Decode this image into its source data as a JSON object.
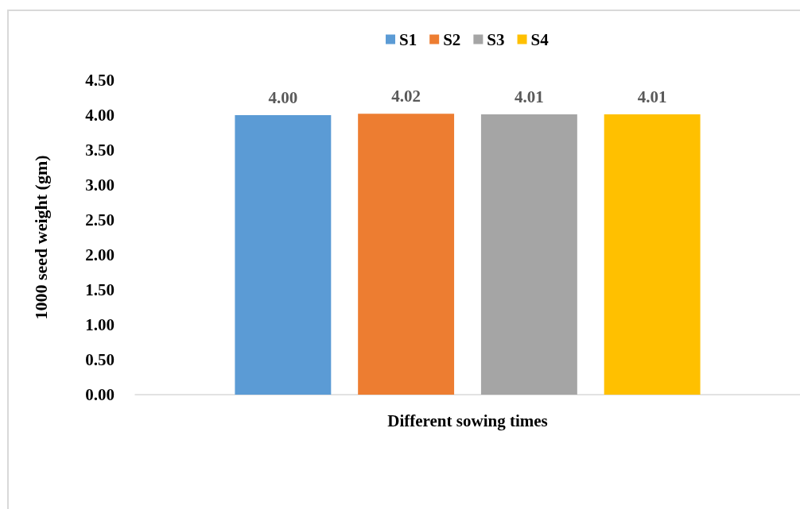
{
  "chart_data": {
    "type": "bar",
    "xlabel": "Different sowing times",
    "ylabel": "1000 seed weight (gm)",
    "categories": [
      null
    ],
    "series": [
      {
        "name": "S1",
        "color": "#5b9bd5",
        "values": [
          4.0
        ],
        "value_labels": [
          "4.00"
        ]
      },
      {
        "name": "S2",
        "color": "#ed7d31",
        "values": [
          4.02
        ],
        "value_labels": [
          "4.02"
        ]
      },
      {
        "name": "S3",
        "color": "#a5a5a5",
        "values": [
          4.01
        ],
        "value_labels": [
          "4.01"
        ]
      },
      {
        "name": "S4",
        "color": "#ffc000",
        "values": [
          4.01
        ],
        "value_labels": [
          "4.01"
        ]
      }
    ],
    "ylim": [
      0,
      4.5
    ],
    "yticks": [
      {
        "value": 0,
        "label": "0.00"
      },
      {
        "value": 0.5,
        "label": "0.50"
      },
      {
        "value": 1,
        "label": "1.00"
      },
      {
        "value": 1.5,
        "label": "1.50"
      },
      {
        "value": 2,
        "label": "2.00"
      },
      {
        "value": 2.5,
        "label": "2.50"
      },
      {
        "value": 3,
        "label": "3.00"
      },
      {
        "value": 3.5,
        "label": "3.50"
      },
      {
        "value": 4,
        "label": "4.00"
      },
      {
        "value": 4.5,
        "label": "4.50"
      }
    ],
    "grid": false,
    "legend": "top"
  }
}
